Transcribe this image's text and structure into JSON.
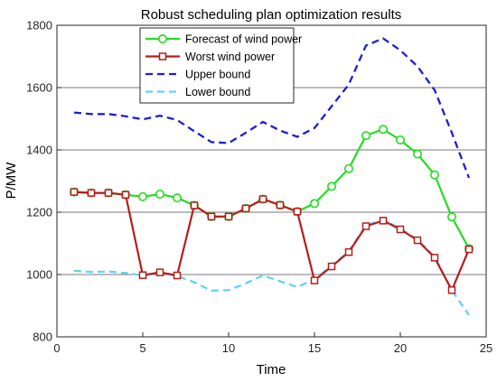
{
  "chart_data": {
    "type": "line",
    "title": "Robust scheduling plan optimization results",
    "xlabel": "Time",
    "ylabel": "P/MW",
    "xlim": [
      0,
      25
    ],
    "ylim": [
      800,
      1800
    ],
    "xticks": [
      "0",
      "5",
      "10",
      "15",
      "20",
      "25"
    ],
    "yticks": [
      "800",
      "1000",
      "1200",
      "1400",
      "1600",
      "1800"
    ],
    "legend_position": "top-left",
    "series": [
      {
        "name": "Forecast of wind power",
        "color": "#22dd22",
        "marker": "circle",
        "x": [
          1,
          2,
          3,
          4,
          5,
          6,
          7,
          8,
          9,
          10,
          11,
          12,
          13,
          14,
          15,
          16,
          17,
          18,
          19,
          20,
          21,
          22,
          23,
          24
        ],
        "values": [
          1265,
          1262,
          1262,
          1256,
          1250,
          1258,
          1246,
          1222,
          1186,
          1186,
          1212,
          1242,
          1223,
          1202,
          1228,
          1283,
          1340,
          1446,
          1466,
          1432,
          1387,
          1320,
          1185,
          1083
        ]
      },
      {
        "name": "Worst wind power",
        "color": "#b91c1c",
        "marker": "square",
        "x": [
          1,
          2,
          3,
          4,
          5,
          6,
          7,
          8,
          9,
          10,
          11,
          12,
          13,
          14,
          15,
          16,
          17,
          18,
          19,
          20,
          21,
          22,
          23,
          24
        ],
        "values": [
          1265,
          1262,
          1262,
          1256,
          998,
          1007,
          997,
          1222,
          1186,
          1186,
          1212,
          1242,
          1223,
          1202,
          981,
          1026,
          1072,
          1155,
          1173,
          1145,
          1110,
          1054,
          950,
          1081
        ]
      },
      {
        "name": "Upper bound",
        "color": "#1f1fd6",
        "dash": "dashed",
        "x": [
          1,
          2,
          3,
          4,
          5,
          6,
          7,
          8,
          9,
          10,
          11,
          12,
          13,
          14,
          15,
          16,
          17,
          18,
          19,
          20,
          21,
          22,
          23,
          24
        ],
        "values": [
          1520,
          1515,
          1515,
          1508,
          1498,
          1510,
          1496,
          1460,
          1425,
          1422,
          1455,
          1490,
          1462,
          1442,
          1470,
          1540,
          1610,
          1735,
          1758,
          1720,
          1668,
          1592,
          1455,
          1310
        ]
      },
      {
        "name": "Lower bound",
        "color": "#5fd3f3",
        "dash": "dashed",
        "x": [
          1,
          2,
          3,
          4,
          5,
          6,
          7,
          8,
          9,
          10,
          11,
          12,
          13,
          14,
          15,
          16,
          17,
          18,
          19,
          20,
          21,
          22,
          23,
          24
        ],
        "values": [
          1012,
          1008,
          1010,
          1005,
          997,
          1005,
          995,
          975,
          948,
          950,
          972,
          997,
          978,
          960,
          985,
          1028,
          1075,
          1158,
          1175,
          1148,
          1112,
          1058,
          950,
          870
        ]
      }
    ]
  }
}
